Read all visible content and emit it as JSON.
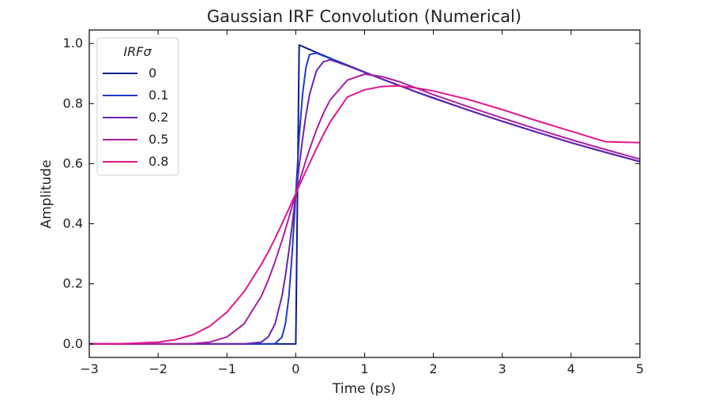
{
  "chart_data": {
    "type": "line",
    "title": "Gaussian IRF Convolution (Numerical)",
    "xlabel": "Time (ps)",
    "ylabel": "Amplitude",
    "xlim": [
      -3,
      5
    ],
    "ylim": [
      -0.045,
      1.045
    ],
    "x_ticks": [
      -3,
      -2,
      -1,
      0,
      1,
      2,
      3,
      4,
      5
    ],
    "y_ticks": [
      0.0,
      0.2,
      0.4,
      0.6,
      0.8,
      1.0
    ],
    "x_tick_labels": [
      "−3",
      "−2",
      "−1",
      "0",
      "1",
      "2",
      "3",
      "4",
      "5"
    ],
    "y_tick_labels": [
      "0.0",
      "0.2",
      "0.4",
      "0.6",
      "0.8",
      "1.0"
    ],
    "grid": false,
    "legend": {
      "title": "IRFσ",
      "placement": "top-left"
    },
    "x": [
      -3.0,
      -2.5,
      -2.0,
      -1.75,
      -1.5,
      -1.25,
      -1.0,
      -0.75,
      -0.5,
      -0.4,
      -0.3,
      -0.2,
      -0.15,
      -0.1,
      -0.05,
      0.0,
      0.05,
      0.1,
      0.15,
      0.2,
      0.3,
      0.4,
      0.5,
      0.75,
      1.0,
      1.25,
      1.5,
      1.75,
      2.0,
      2.5,
      3.0,
      3.5,
      4.0,
      4.5,
      5.0
    ],
    "series": [
      {
        "name": "0",
        "color": "#0d1b8c",
        "values": [
          0,
          0,
          0,
          0,
          0,
          0,
          0,
          0,
          0,
          0,
          0,
          0,
          0,
          0,
          0,
          0.0,
          0.995,
          0.99,
          0.985,
          0.98,
          0.97,
          0.961,
          0.951,
          0.928,
          0.905,
          0.882,
          0.861,
          0.839,
          0.819,
          0.779,
          0.741,
          0.705,
          0.67,
          0.638,
          0.607
        ]
      },
      {
        "name": "0.1",
        "color": "#1f3bc4",
        "values": [
          0,
          0,
          0,
          0,
          0,
          0,
          0,
          0,
          0.0,
          0.0,
          0.001,
          0.023,
          0.067,
          0.159,
          0.309,
          0.499,
          0.689,
          0.834,
          0.922,
          0.963,
          0.968,
          0.959,
          0.95,
          0.927,
          0.904,
          0.882,
          0.86,
          0.839,
          0.818,
          0.779,
          0.741,
          0.705,
          0.67,
          0.638,
          0.607
        ]
      },
      {
        "name": "0.2",
        "color": "#6a24b0",
        "values": [
          0,
          0,
          0,
          0,
          0,
          0,
          0,
          0.0,
          0.006,
          0.023,
          0.067,
          0.159,
          0.227,
          0.309,
          0.401,
          0.497,
          0.593,
          0.684,
          0.763,
          0.83,
          0.909,
          0.939,
          0.946,
          0.926,
          0.904,
          0.882,
          0.86,
          0.839,
          0.818,
          0.779,
          0.741,
          0.705,
          0.67,
          0.638,
          0.607
        ]
      },
      {
        "name": "0.5",
        "color": "#a8209f",
        "values": [
          0,
          0,
          0.0,
          0.0,
          0.001,
          0.006,
          0.023,
          0.067,
          0.159,
          0.212,
          0.274,
          0.344,
          0.382,
          0.421,
          0.46,
          0.499,
          0.538,
          0.576,
          0.613,
          0.648,
          0.712,
          0.767,
          0.812,
          0.878,
          0.898,
          0.89,
          0.873,
          0.852,
          0.83,
          0.79,
          0.752,
          0.715,
          0.68,
          0.647,
          0.615
        ]
      },
      {
        "name": "0.8",
        "color": "#e0188f",
        "values": [
          0.0,
          0.001,
          0.006,
          0.014,
          0.03,
          0.059,
          0.106,
          0.174,
          0.265,
          0.306,
          0.351,
          0.4,
          0.425,
          0.45,
          0.476,
          0.5,
          0.526,
          0.552,
          0.577,
          0.601,
          0.65,
          0.696,
          0.739,
          0.822,
          0.846,
          0.857,
          0.859,
          0.852,
          0.842,
          0.814,
          0.78,
          0.743,
          0.708,
          0.673,
          0.67
        ]
      }
    ]
  }
}
